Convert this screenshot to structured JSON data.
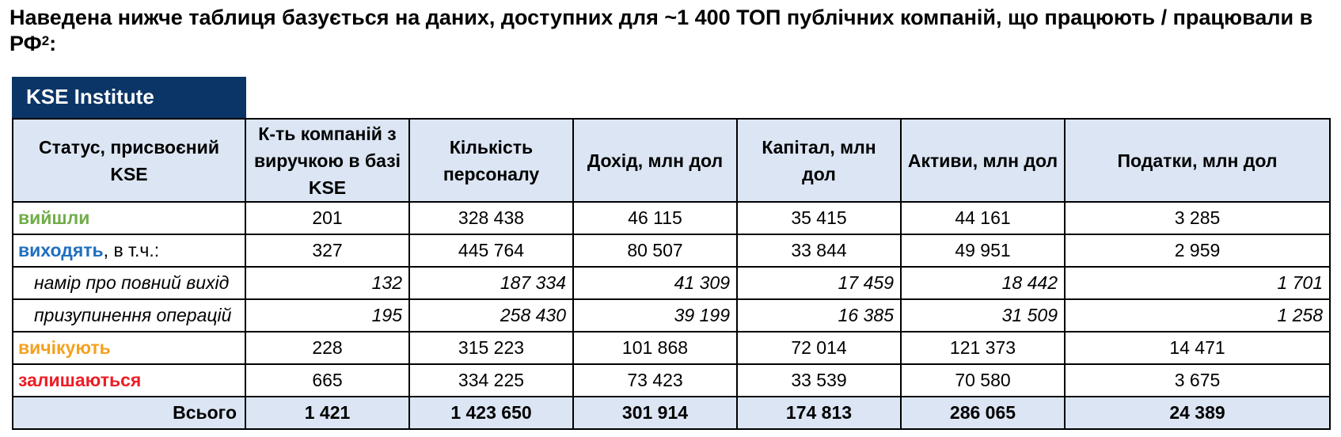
{
  "heading": {
    "text": "Наведена нижче таблиця базується на даних, доступних для ~1 400 ТОП публічних компаній, що працюють / працювали в РФ",
    "footnote": "2",
    "suffix": ":"
  },
  "brand": "KSE Institute",
  "table": {
    "headers": [
      "Статус, присвоєний KSE",
      "К-ть компаній з виручкою в базі KSE",
      "Кількість персоналу",
      "Дохід, млн дол",
      "Капітал, млн дол",
      "Активи, млн дол",
      "Податки, млн дол"
    ],
    "rows": [
      {
        "label": "вийшли",
        "suffix": "",
        "cells": [
          "201",
          "328 438",
          "46 115",
          "35 415",
          "44 161",
          "3 285"
        ]
      },
      {
        "label": "виходять",
        "suffix": ", в т.ч.:",
        "cells": [
          "327",
          "445 764",
          "80 507",
          "33 844",
          "49 951",
          "2 959"
        ]
      },
      {
        "label": "намір про повний вихід",
        "suffix": "",
        "cells": [
          "132",
          "187 334",
          "41 309",
          "17 459",
          "18 442",
          "1 701"
        ]
      },
      {
        "label": "призупинення операцій",
        "suffix": "",
        "cells": [
          "195",
          "258 430",
          "39 199",
          "16 385",
          "31 509",
          "1 258"
        ]
      },
      {
        "label": "вичікують",
        "suffix": "",
        "cells": [
          "228",
          "315 223",
          "101 868",
          "72 014",
          "121 373",
          "14 471"
        ]
      },
      {
        "label": "залишаються",
        "suffix": "",
        "cells": [
          "665",
          "334 225",
          "73 423",
          "33 539",
          "70 580",
          "3 675"
        ]
      }
    ],
    "total": {
      "label": "Всього",
      "cells": [
        "1 421",
        "1 423 650",
        "301 914",
        "174 813",
        "286 065",
        "24 389"
      ]
    },
    "colors": {
      "left": "#70ad47",
      "leaving": "#1f6fc0",
      "waiting": "#f5a01e",
      "staying": "#ee1c24",
      "header_bg": "#dbe5f3",
      "brand_bg": "#0b3566"
    }
  }
}
